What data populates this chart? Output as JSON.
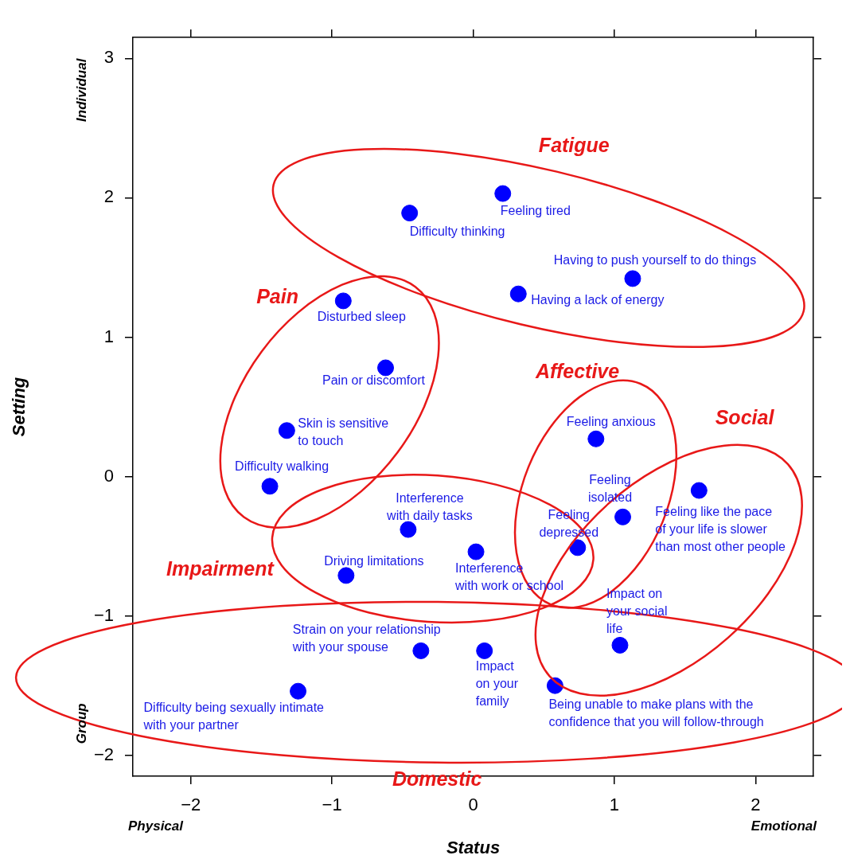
{
  "chart_data": {
    "type": "scatter",
    "xlabel": "Status",
    "ylabel": "Setting",
    "xlim": [
      -2.41,
      2.41
    ],
    "ylim": [
      -2.15,
      3.15
    ],
    "xticks": [
      -2,
      -1,
      0,
      1,
      2
    ],
    "yticks": [
      -2,
      -1,
      0,
      1,
      2,
      3
    ],
    "grid": false,
    "legend": false,
    "marker": "circle",
    "series": [
      {
        "color": "#0000ff",
        "x": [
          0.21,
          -0.45,
          1.13,
          0.32
        ],
        "values": [
          2.03,
          1.89,
          1.42,
          1.31
        ]
      },
      {
        "color": "#0000ff",
        "x": [
          -0.92,
          -0.62,
          -1.32,
          -1.44
        ],
        "values": [
          1.26,
          0.78,
          0.33,
          -0.07
        ]
      },
      {
        "color": "#0000ff",
        "x": [
          -0.46,
          0.02,
          -0.9
        ],
        "values": [
          -0.38,
          -0.54,
          -0.71
        ]
      },
      {
        "color": "#0000ff",
        "x": [
          0.87,
          1.06,
          0.74
        ],
        "values": [
          0.27,
          -0.29,
          -0.51
        ]
      },
      {
        "color": "#0000ff",
        "x": [
          1.6,
          1.04
        ],
        "values": [
          -0.1,
          -1.21
        ]
      },
      {
        "color": "#0000ff",
        "x": [
          -0.37,
          0.08,
          0.58,
          -1.24
        ],
        "values": [
          -1.25,
          -1.25,
          -1.5,
          -1.54
        ]
      }
    ],
    "annotations": [
      "Individual",
      "Group",
      "Physical",
      "Emotional",
      "Fatigue",
      "Pain",
      "Impairment",
      "Affective",
      "Social",
      "Domestic",
      {
        "text": "Feeling tired",
        "x": 0.21,
        "y": 2.03
      },
      {
        "text": "Difficulty thinking",
        "x": -0.45,
        "y": 1.89
      },
      {
        "text": "Having to push yourself to do things",
        "x": 1.13,
        "y": 1.42
      },
      {
        "text": "Having a lack of energy",
        "x": 0.32,
        "y": 1.31
      },
      {
        "text": "Disturbed sleep",
        "x": -0.92,
        "y": 1.26
      },
      {
        "text": "Pain or discomfort",
        "x": -0.62,
        "y": 0.78
      },
      {
        "text": "Skin is sensitive to touch",
        "x": -1.32,
        "y": 0.33
      },
      {
        "text": "Difficulty walking",
        "x": -1.44,
        "y": -0.07
      },
      {
        "text": "Interference with daily tasks",
        "x": -0.46,
        "y": -0.38
      },
      {
        "text": "Interference with work or school",
        "x": 0.02,
        "y": -0.54
      },
      {
        "text": "Driving limitations",
        "x": -0.9,
        "y": -0.71
      },
      {
        "text": "Feeling anxious",
        "x": 0.87,
        "y": 0.27
      },
      {
        "text": "Feeling isolated",
        "x": 1.06,
        "y": -0.29
      },
      {
        "text": "Feeling depressed",
        "x": 0.74,
        "y": -0.51
      },
      {
        "text": "Feeling like the pace of your life is slower than most other people",
        "x": 1.6,
        "y": -0.1
      },
      {
        "text": "Impact on your social life",
        "x": 1.04,
        "y": -1.21
      },
      {
        "text": "Strain on your relationship with your spouse",
        "x": -0.37,
        "y": -1.25
      },
      {
        "text": "Impact on your family",
        "x": 0.08,
        "y": -1.25
      },
      {
        "text": "Being unable to make plans with the confidence that you will follow-through",
        "x": 0.58,
        "y": -1.5
      },
      {
        "text": "Difficulty being sexually intimate with your partner",
        "x": -1.24,
        "y": -1.54
      }
    ]
  }
}
